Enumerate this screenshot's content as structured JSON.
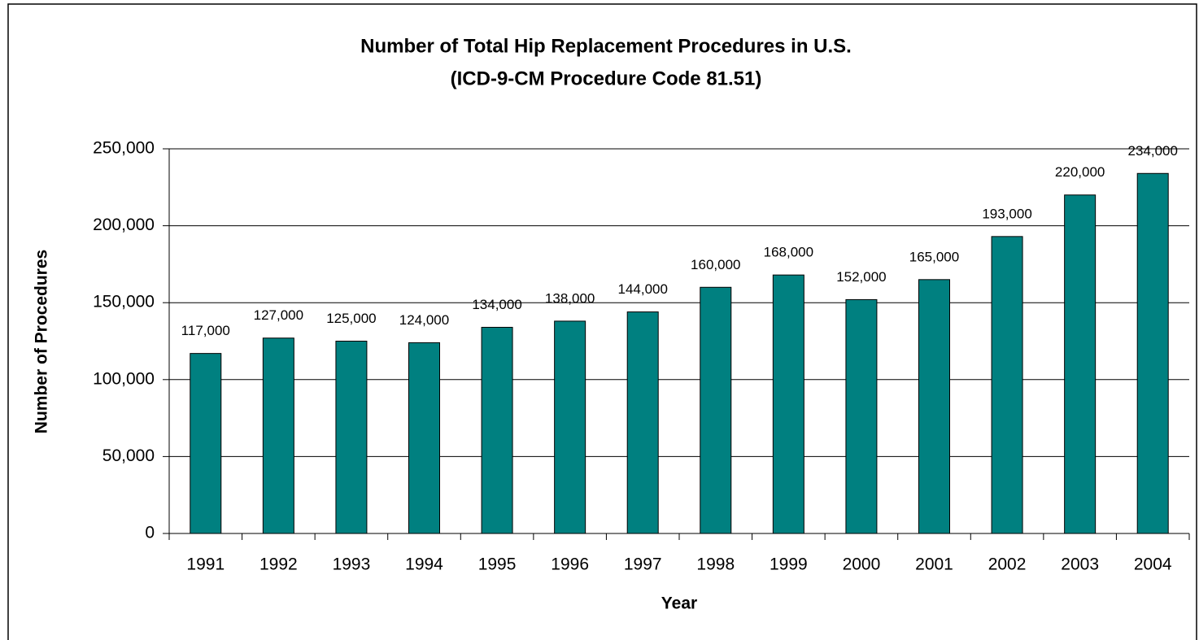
{
  "chart_data": {
    "type": "bar",
    "title": "Number of Total Hip Replacement Procedures in U.S.",
    "subtitle": "(ICD-9-CM Procedure Code 81.51)",
    "x_label": "Year",
    "y_label": "Number of Procedures",
    "categories": [
      "1991",
      "1992",
      "1993",
      "1994",
      "1995",
      "1996",
      "1997",
      "1998",
      "1999",
      "2000",
      "2001",
      "2002",
      "2003",
      "2004"
    ],
    "values": [
      117000,
      127000,
      125000,
      124000,
      134000,
      138000,
      144000,
      160000,
      168000,
      152000,
      165000,
      193000,
      220000,
      234000
    ],
    "value_labels": [
      "117,000",
      "127,000",
      "125,000",
      "124,000",
      "134,000",
      "138,000",
      "144,000",
      "160,000",
      "168,000",
      "152,000",
      "165,000",
      "193,000",
      "220,000",
      "234,000"
    ],
    "color": "#008080",
    "ylim": [
      0,
      250000
    ],
    "yticks": [
      0,
      {
        "value": 50000,
        "label": "50,000"
      },
      {
        "value": 100000,
        "label": "100,000"
      },
      {
        "value": 150000,
        "label": "150,000"
      },
      {
        "value": 200000,
        "label": "200,000"
      },
      {
        "value": 250000,
        "label": "250,000"
      }
    ],
    "grid": true
  }
}
